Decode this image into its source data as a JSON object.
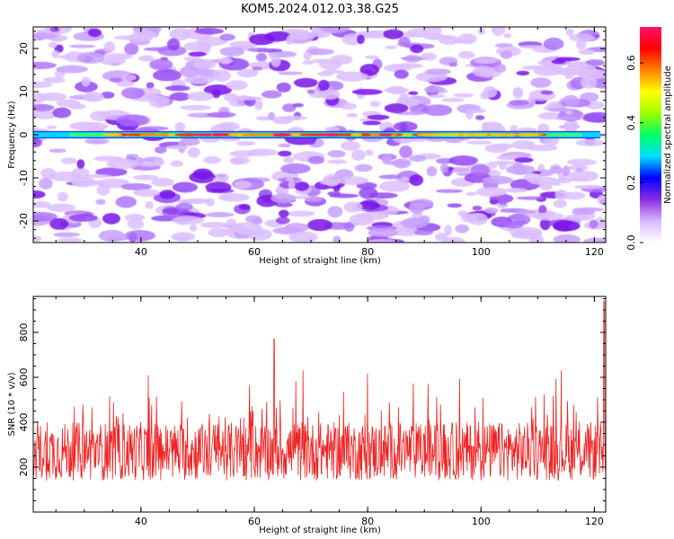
{
  "title": "KOM5.2024.012.03.38.G25",
  "chart_data": [
    {
      "type": "heatmap",
      "name": "spectrogram",
      "xlabel": "Height of straight line (km)",
      "ylabel": "Frequency (Hz)",
      "xlim": [
        21,
        122
      ],
      "ylim": [
        -25,
        25
      ],
      "xticks": [
        40,
        60,
        80,
        100,
        120
      ],
      "yticks": [
        -20,
        -10,
        0,
        10,
        20
      ],
      "ridge": {
        "frequency": 0,
        "x_range": [
          21,
          121
        ],
        "amplitude_range": [
          0.15,
          0.7
        ]
      },
      "colorbar": {
        "label": "Normalized spectral amplitude",
        "range": [
          0,
          0.72
        ],
        "ticks": [
          0.0,
          0.2,
          0.4,
          0.6
        ],
        "tick_labels": [
          "0.0",
          "0.2",
          "0.4",
          "0.6"
        ],
        "colors": [
          "#ffffff",
          "#d8b8ff",
          "#8a2be2",
          "#0000ff",
          "#00e0ff",
          "#00ff60",
          "#a0ff00",
          "#ffff00",
          "#ff8000",
          "#ff0000",
          "#ff1070"
        ]
      }
    },
    {
      "type": "line",
      "name": "snr",
      "xlabel": "Height of straight line (km)",
      "ylabel": "SNR (10 * v/v)",
      "xlim": [
        21,
        122
      ],
      "ylim": [
        0,
        960
      ],
      "xticks": [
        40,
        60,
        80,
        100,
        120
      ],
      "yticks": [
        200,
        400,
        600,
        800
      ],
      "color": "#ee2222",
      "series_summary": {
        "n_points": 1200,
        "typical_range": [
          150,
          400
        ],
        "peaks": [
          {
            "x": 63.5,
            "y": 770
          },
          {
            "x": 121.7,
            "y": 940
          }
        ]
      }
    }
  ]
}
